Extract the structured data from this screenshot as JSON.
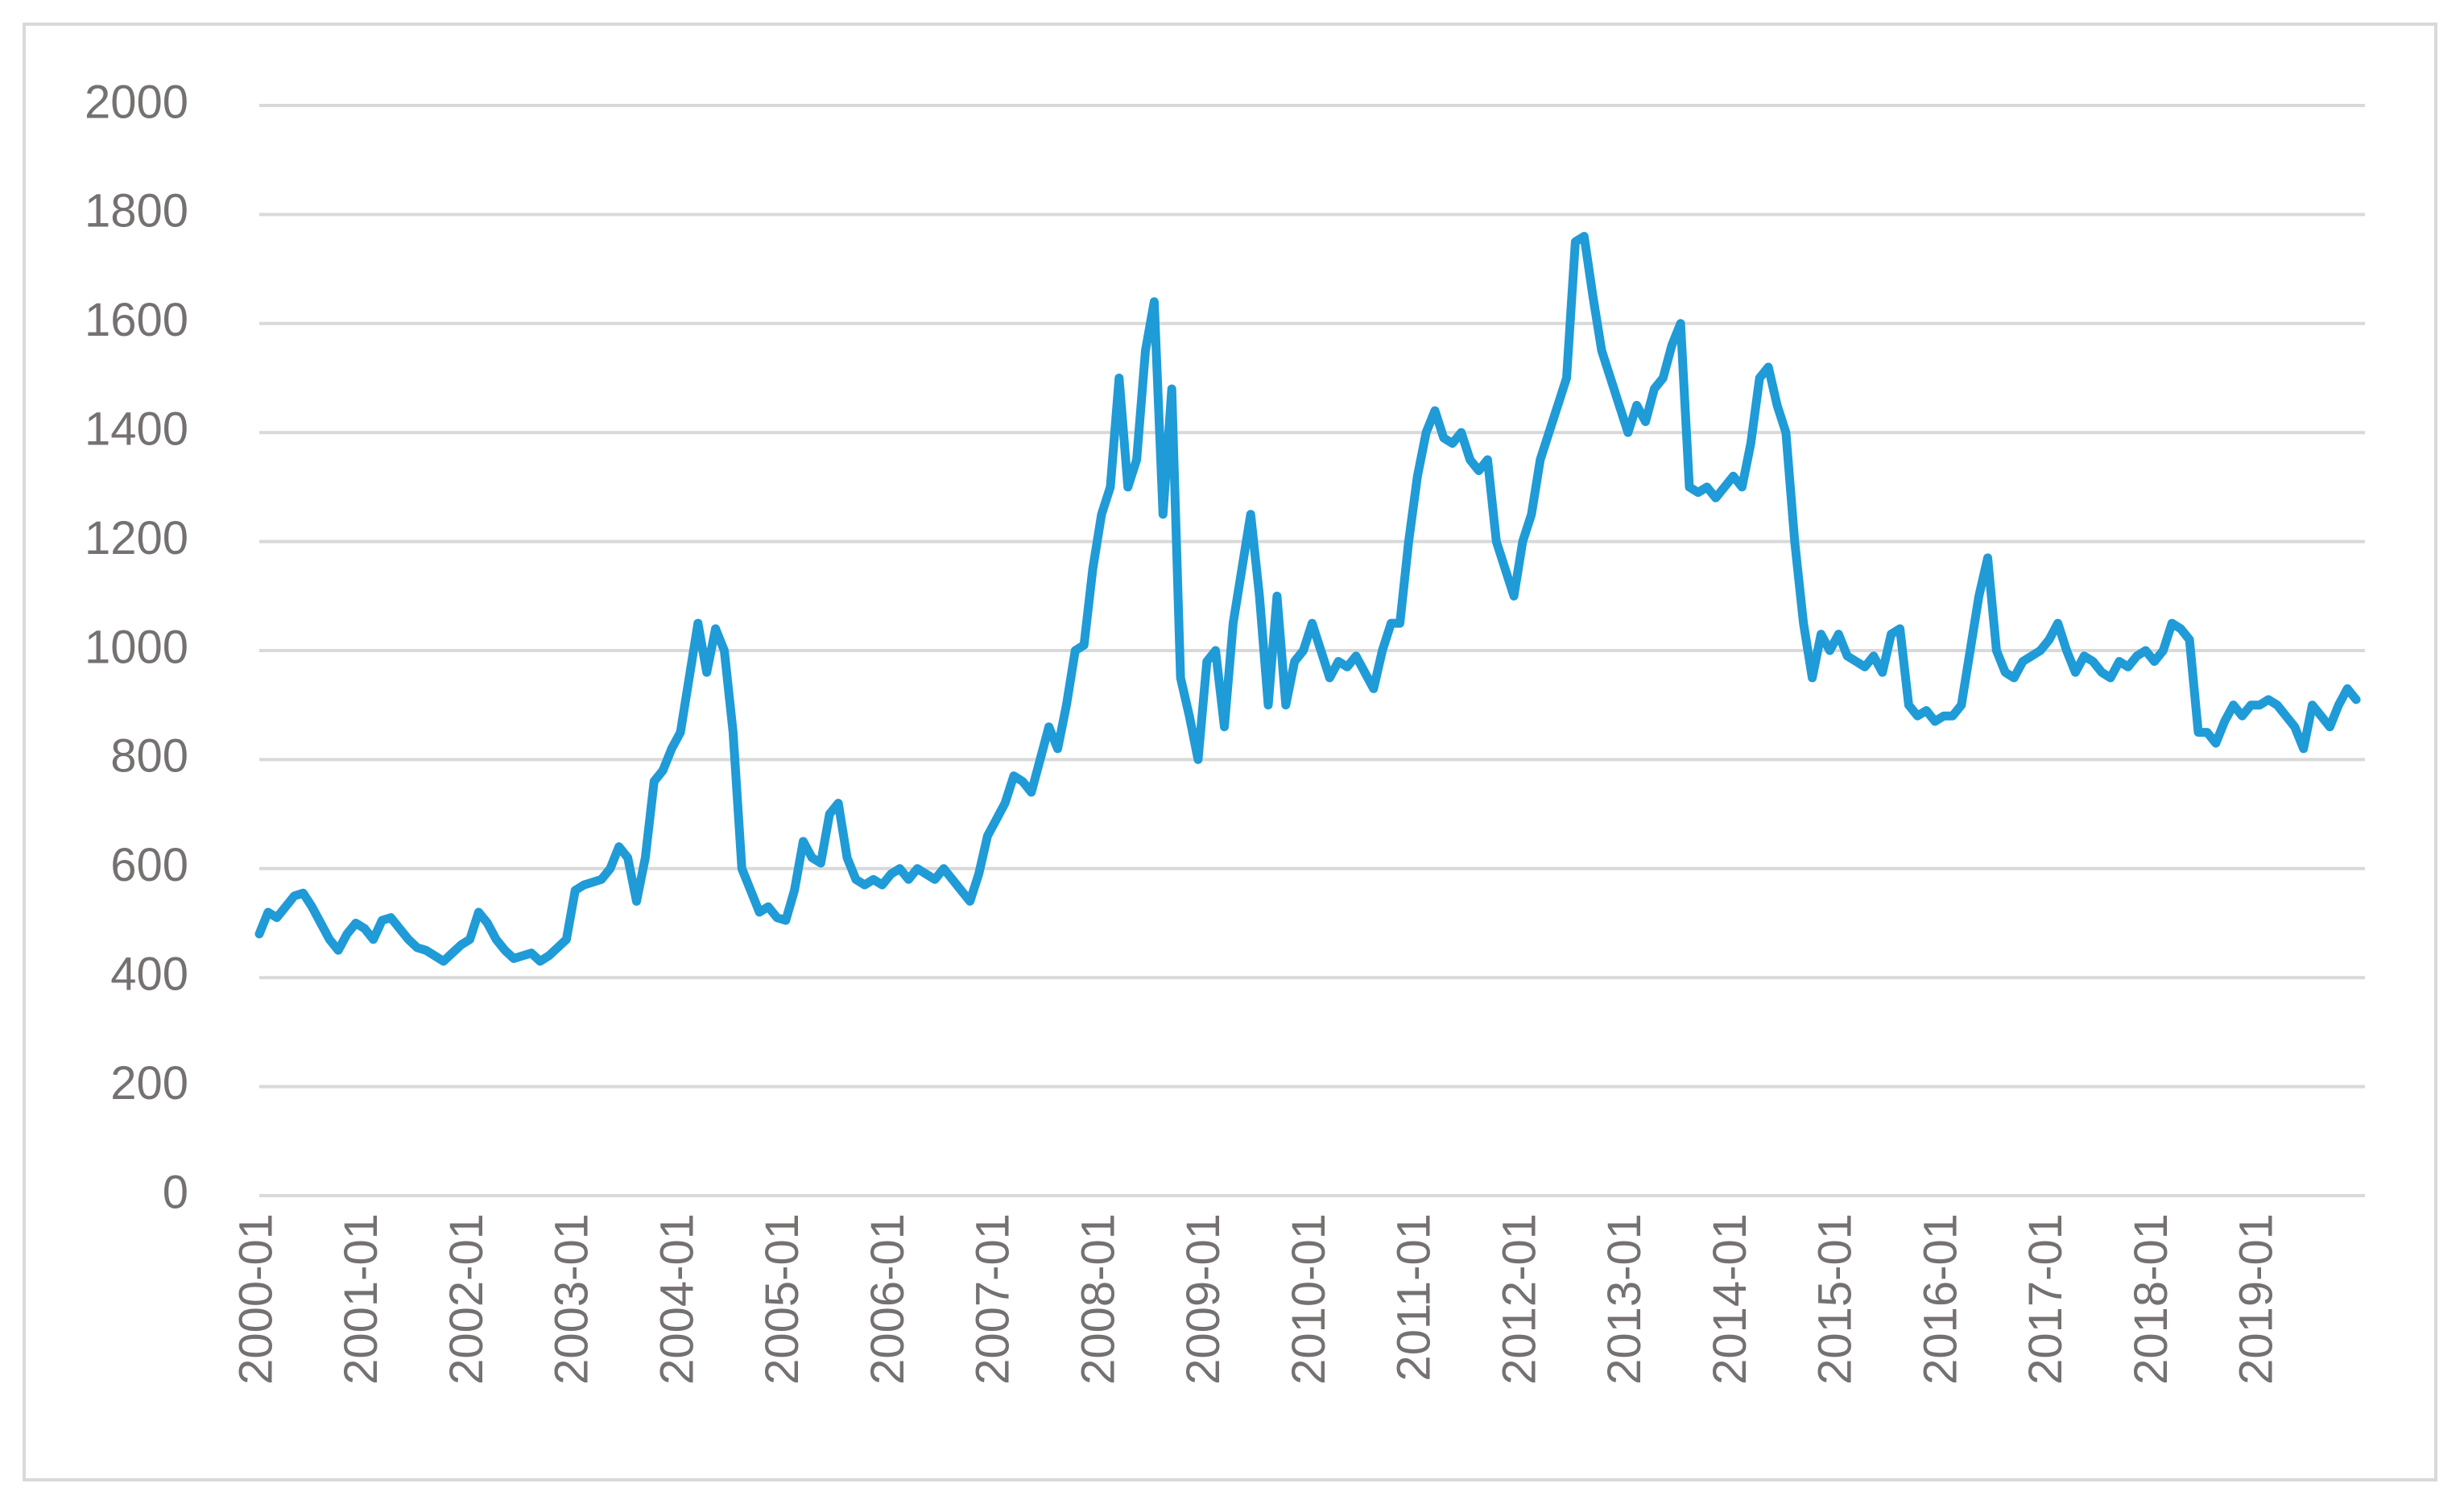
{
  "chart_data": {
    "type": "line",
    "categories": [
      "2000-01",
      null,
      null,
      null,
      null,
      null,
      null,
      null,
      null,
      null,
      null,
      null,
      "2001-01",
      null,
      null,
      null,
      null,
      null,
      null,
      null,
      null,
      null,
      null,
      null,
      "2002-01",
      null,
      null,
      null,
      null,
      null,
      null,
      null,
      null,
      null,
      null,
      null,
      "2003-01",
      null,
      null,
      null,
      null,
      null,
      null,
      null,
      null,
      null,
      null,
      null,
      "2004-01",
      null,
      null,
      null,
      null,
      null,
      null,
      null,
      null,
      null,
      null,
      null,
      "2005-01",
      null,
      null,
      null,
      null,
      null,
      null,
      null,
      null,
      null,
      null,
      null,
      "2006-01",
      null,
      null,
      null,
      null,
      null,
      null,
      null,
      null,
      null,
      null,
      null,
      "2007-01",
      null,
      null,
      null,
      null,
      null,
      null,
      null,
      null,
      null,
      null,
      null,
      "2008-01",
      null,
      null,
      null,
      null,
      null,
      null,
      null,
      null,
      null,
      null,
      null,
      "2009-01",
      null,
      null,
      null,
      null,
      null,
      null,
      null,
      null,
      null,
      null,
      null,
      "2010-01",
      null,
      null,
      null,
      null,
      null,
      null,
      null,
      null,
      null,
      null,
      null,
      "2011-01",
      null,
      null,
      null,
      null,
      null,
      null,
      null,
      null,
      null,
      null,
      null,
      "2012-01",
      null,
      null,
      null,
      null,
      null,
      null,
      null,
      null,
      null,
      null,
      null,
      "2013-01",
      null,
      null,
      null,
      null,
      null,
      null,
      null,
      null,
      null,
      null,
      null,
      "2014-01",
      null,
      null,
      null,
      null,
      null,
      null,
      null,
      null,
      null,
      null,
      null,
      "2015-01",
      null,
      null,
      null,
      null,
      null,
      null,
      null,
      null,
      null,
      null,
      null,
      "2016-01",
      null,
      null,
      null,
      null,
      null,
      null,
      null,
      null,
      null,
      null,
      null,
      "2017-01",
      null,
      null,
      null,
      null,
      null,
      null,
      null,
      null,
      null,
      null,
      null,
      "2018-01",
      null,
      null,
      null,
      null,
      null,
      null,
      null,
      null,
      null,
      null,
      null,
      "2019-01",
      null,
      null,
      null,
      null,
      null,
      null,
      null,
      null,
      null,
      null,
      null
    ],
    "values": [
      480,
      520,
      510,
      530,
      550,
      555,
      530,
      500,
      470,
      450,
      480,
      500,
      490,
      470,
      505,
      510,
      490,
      470,
      455,
      450,
      440,
      430,
      445,
      460,
      470,
      520,
      500,
      470,
      450,
      435,
      440,
      445,
      430,
      440,
      455,
      470,
      560,
      570,
      575,
      580,
      600,
      640,
      620,
      540,
      620,
      760,
      780,
      820,
      850,
      950,
      1050,
      960,
      1040,
      1000,
      850,
      600,
      560,
      520,
      530,
      510,
      505,
      560,
      650,
      620,
      610,
      700,
      720,
      620,
      580,
      570,
      580,
      570,
      590,
      600,
      580,
      600,
      590,
      580,
      600,
      580,
      560,
      540,
      590,
      660,
      690,
      720,
      770,
      760,
      740,
      800,
      860,
      820,
      900,
      1000,
      1010,
      1150,
      1250,
      1300,
      1500,
      1300,
      1350,
      1550,
      1640,
      1250,
      1480,
      950,
      880,
      800,
      980,
      1000,
      860,
      1050,
      1150,
      1250,
      1100,
      900,
      1100,
      900,
      980,
      1000,
      1050,
      1000,
      950,
      980,
      970,
      990,
      960,
      930,
      1000,
      1050,
      1050,
      1200,
      1320,
      1400,
      1440,
      1390,
      1380,
      1400,
      1350,
      1330,
      1350,
      1200,
      1150,
      1100,
      1200,
      1250,
      1350,
      1400,
      1450,
      1500,
      1750,
      1760,
      1650,
      1550,
      1500,
      1450,
      1400,
      1450,
      1420,
      1480,
      1500,
      1560,
      1600,
      1300,
      1290,
      1300,
      1280,
      1300,
      1320,
      1300,
      1380,
      1500,
      1520,
      1450,
      1400,
      1200,
      1050,
      950,
      1030,
      1000,
      1030,
      990,
      980,
      970,
      990,
      960,
      1030,
      1040,
      900,
      880,
      890,
      870,
      880,
      880,
      900,
      1000,
      1100,
      1170,
      1000,
      960,
      950,
      980,
      990,
      1000,
      1020,
      1050,
      1000,
      960,
      990,
      980,
      960,
      950,
      980,
      970,
      990,
      1000,
      980,
      1000,
      1050,
      1040,
      1020,
      850,
      850,
      830,
      870,
      900,
      880,
      900,
      900,
      910,
      900,
      880,
      860,
      820,
      900,
      880,
      860,
      900,
      930,
      910
    ],
    "color": "#1f9bd7",
    "ylim": [
      0,
      2000
    ],
    "yticks": [
      0,
      200,
      400,
      600,
      800,
      1000,
      1200,
      1400,
      1600,
      1800,
      2000
    ],
    "grid": true
  }
}
